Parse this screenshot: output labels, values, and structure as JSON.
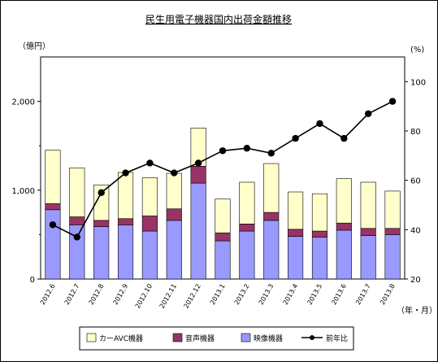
{
  "chart_data": {
    "type": "bar",
    "title": "民生用電子機器国内出荷金額推移",
    "ylabel_left": "（億円）",
    "ylabel_right": "(%)",
    "xlabel": "（年・月）",
    "ylim_left": [
      0,
      2500
    ],
    "yticks_left": [
      "0",
      "1,000",
      "2,000"
    ],
    "yticks_left_values": [
      0,
      1000,
      2000
    ],
    "ylim_right": [
      20,
      110
    ],
    "yticks_right": [
      "20",
      "40",
      "60",
      "80",
      "100"
    ],
    "yticks_right_values": [
      20,
      40,
      60,
      80,
      100
    ],
    "categories": [
      "2012.6",
      "2012.7",
      "2012.8",
      "2012.9",
      "2012.10",
      "2012.11",
      "2012.12",
      "2013.1",
      "2013.2",
      "2013.3",
      "2013.4",
      "2013.5",
      "2013.6",
      "2013.7",
      "2013.8"
    ],
    "series": [
      {
        "name": "映像機器",
        "kind": "bar",
        "color": "#9999ff",
        "values": [
          780,
          610,
          590,
          610,
          540,
          660,
          1080,
          430,
          540,
          660,
          480,
          470,
          550,
          490,
          500
        ]
      },
      {
        "name": "音声機器",
        "kind": "bar",
        "color": "#993366",
        "values": [
          70,
          90,
          70,
          70,
          170,
          130,
          190,
          90,
          80,
          90,
          80,
          70,
          80,
          80,
          70
        ]
      },
      {
        "name": "カーAVC機器",
        "kind": "bar",
        "color": "#ffffcc",
        "values": [
          600,
          550,
          400,
          520,
          430,
          400,
          430,
          380,
          470,
          550,
          420,
          420,
          500,
          520,
          420
        ]
      },
      {
        "name": "前年比",
        "kind": "line",
        "axis": "right",
        "color": "#000000",
        "values": [
          42,
          37,
          55,
          63,
          67,
          63,
          67,
          72,
          73,
          71,
          77,
          83,
          77,
          87,
          92
        ]
      }
    ],
    "legend_position": "bottom",
    "grid": false
  }
}
